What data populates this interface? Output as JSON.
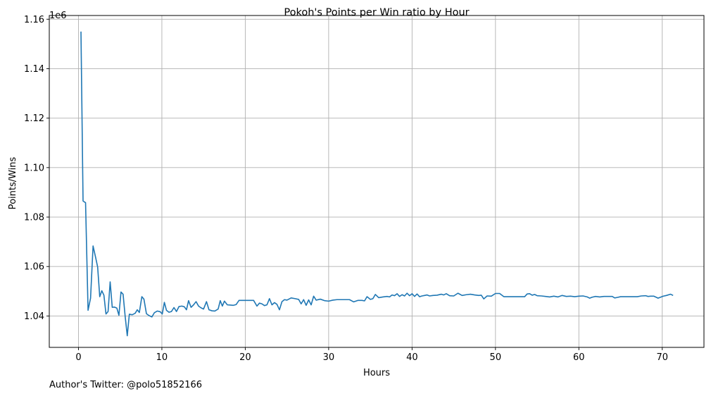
{
  "chart_data": {
    "type": "line",
    "title": "Pokoh's Points per Win ratio by Hour",
    "xlabel": "Hours",
    "ylabel": "Points/Wins",
    "y_offset_label": "1e6",
    "footnote": "Author's Twitter: @polo51852166",
    "xlim": [
      -3.5,
      75
    ],
    "ylim": [
      1.0273,
      1.1615
    ],
    "x_ticks": [
      0,
      10,
      20,
      30,
      40,
      50,
      60,
      70
    ],
    "x_tick_labels": [
      "0",
      "10",
      "20",
      "30",
      "40",
      "50",
      "60",
      "70"
    ],
    "y_ticks": [
      1.04,
      1.06,
      1.08,
      1.1,
      1.12,
      1.14,
      1.16
    ],
    "y_tick_labels": [
      "1.04",
      "1.06",
      "1.08",
      "1.10",
      "1.12",
      "1.14",
      "1.16"
    ],
    "grid": true,
    "series_color": "#1f77b4",
    "series": [
      {
        "x": [
          0.3,
          0.55,
          0.85,
          1.15,
          1.45,
          1.75,
          2.05,
          2.3,
          2.55,
          2.8,
          3.05,
          3.3,
          3.55,
          3.8,
          4.05,
          4.3,
          4.6,
          4.85,
          5.1,
          5.35,
          5.6,
          5.85,
          6.1,
          6.45,
          6.8,
          7.05,
          7.3,
          7.6,
          7.85,
          8.15,
          8.45,
          8.8,
          9.1,
          9.45,
          9.8,
          10.05,
          10.3,
          10.55,
          10.85,
          11.15,
          11.45,
          11.75,
          12.05,
          12.4,
          12.7,
          12.95,
          13.2,
          13.5,
          13.8,
          14.1,
          14.4,
          14.7,
          15.0,
          15.35,
          15.65,
          16.0,
          16.35,
          16.75,
          17.0,
          17.25,
          17.5,
          17.85,
          18.2,
          18.55,
          18.9,
          19.25,
          20.0,
          21.0,
          21.4,
          21.7,
          22.0,
          22.3,
          22.6,
          22.9,
          23.2,
          23.5,
          23.8,
          24.1,
          24.4,
          24.7,
          25.0,
          25.5,
          26.0,
          26.4,
          26.7,
          27.0,
          27.3,
          27.6,
          27.9,
          28.2,
          28.5,
          29.0,
          29.5,
          30.0,
          30.5,
          31.0,
          32.0,
          32.5,
          33.0,
          33.5,
          34.0,
          34.3,
          34.6,
          35.0,
          35.3,
          35.6,
          36.0,
          36.5,
          37.0,
          37.3,
          37.6,
          37.9,
          38.2,
          38.5,
          38.8,
          39.1,
          39.4,
          39.7,
          40.0,
          40.3,
          40.6,
          40.9,
          41.2,
          41.5,
          41.8,
          42.1,
          42.5,
          43.0,
          43.5,
          43.8,
          44.1,
          44.5,
          45.0,
          45.5,
          46.0,
          46.5,
          47.0,
          47.5,
          48.0,
          48.3,
          48.6,
          49.0,
          49.5,
          50.0,
          50.5,
          51.0,
          52.0,
          53.0,
          53.5,
          53.8,
          54.1,
          54.4,
          54.7,
          55.0,
          55.5,
          56.0,
          56.5,
          57.0,
          57.5,
          58.0,
          58.5,
          59.0,
          59.5,
          60.0,
          60.5,
          61.0,
          61.3,
          61.6,
          62.0,
          62.5,
          63.0,
          63.5,
          64.0,
          64.3,
          64.6,
          65.0,
          66.0,
          67.0,
          67.5,
          68.0,
          68.3,
          68.6,
          69.0,
          69.5,
          69.8,
          70.1,
          70.5,
          71.0,
          71.3
        ],
        "values": [
          1.155,
          1.0865,
          1.0858,
          1.0423,
          1.0472,
          1.0683,
          1.0638,
          1.0598,
          1.0478,
          1.0502,
          1.0484,
          1.0408,
          1.0418,
          1.0538,
          1.0435,
          1.0436,
          1.0432,
          1.0403,
          1.0497,
          1.0488,
          1.0398,
          1.032,
          1.0407,
          1.0405,
          1.0411,
          1.0425,
          1.0414,
          1.0478,
          1.0468,
          1.0409,
          1.0402,
          1.0396,
          1.0413,
          1.042,
          1.0417,
          1.0408,
          1.0455,
          1.0423,
          1.0415,
          1.0418,
          1.0434,
          1.0418,
          1.0438,
          1.044,
          1.0437,
          1.0425,
          1.0462,
          1.0435,
          1.0445,
          1.0458,
          1.044,
          1.0433,
          1.0428,
          1.0458,
          1.0425,
          1.0421,
          1.042,
          1.0428,
          1.0462,
          1.044,
          1.046,
          1.0445,
          1.0444,
          1.0443,
          1.0446,
          1.0463,
          1.0463,
          1.0463,
          1.044,
          1.0452,
          1.0449,
          1.0442,
          1.0445,
          1.047,
          1.0445,
          1.0454,
          1.0447,
          1.0425,
          1.0458,
          1.0466,
          1.0464,
          1.0473,
          1.047,
          1.0467,
          1.0449,
          1.0466,
          1.0443,
          1.0465,
          1.0445,
          1.048,
          1.0464,
          1.0468,
          1.0462,
          1.046,
          1.0464,
          1.0466,
          1.0466,
          1.0466,
          1.0457,
          1.0463,
          1.0463,
          1.0461,
          1.0478,
          1.0467,
          1.047,
          1.0487,
          1.0474,
          1.0477,
          1.0479,
          1.0477,
          1.0485,
          1.0482,
          1.049,
          1.0479,
          1.0486,
          1.0481,
          1.0492,
          1.0482,
          1.049,
          1.0479,
          1.0489,
          1.0478,
          1.0481,
          1.0483,
          1.0485,
          1.0481,
          1.0483,
          1.0484,
          1.0488,
          1.0485,
          1.049,
          1.0482,
          1.0481,
          1.0492,
          1.0483,
          1.0486,
          1.0488,
          1.0485,
          1.0483,
          1.0484,
          1.0469,
          1.0481,
          1.048,
          1.0491,
          1.0491,
          1.0478,
          1.0478,
          1.0478,
          1.0478,
          1.0489,
          1.049,
          1.0484,
          1.0487,
          1.0482,
          1.0481,
          1.0479,
          1.0477,
          1.048,
          1.0477,
          1.0483,
          1.0479,
          1.048,
          1.0478,
          1.048,
          1.0481,
          1.0477,
          1.0472,
          1.0476,
          1.0479,
          1.0477,
          1.0479,
          1.0479,
          1.0479,
          1.0473,
          1.0475,
          1.0478,
          1.0478,
          1.0478,
          1.0481,
          1.0482,
          1.0479,
          1.048,
          1.048,
          1.0472,
          1.0476,
          1.048,
          1.0483,
          1.0488,
          1.0483
        ]
      }
    ]
  }
}
